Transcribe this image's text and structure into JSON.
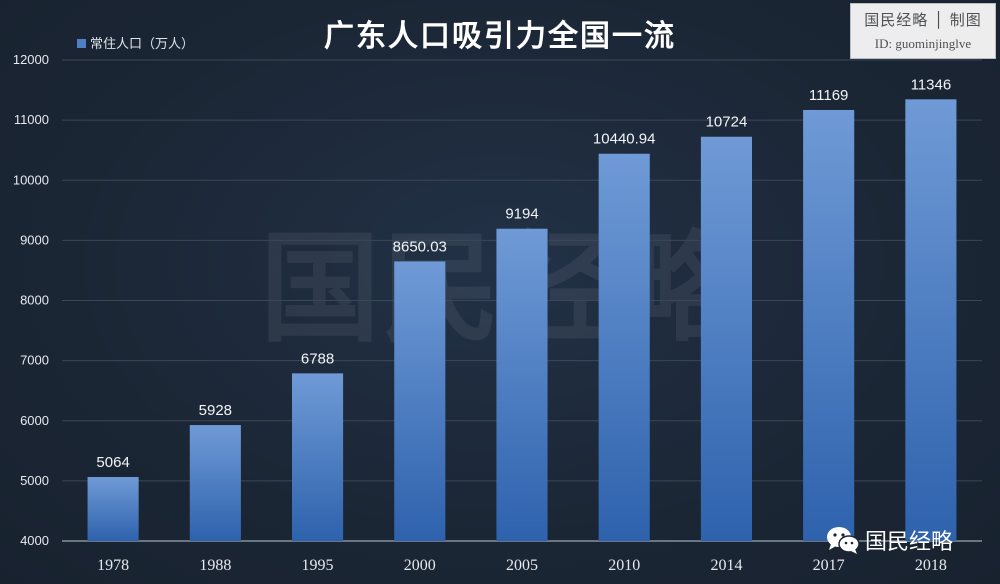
{
  "chart_data": {
    "type": "bar",
    "title": "广东人口吸引力全国一流",
    "xlabel": "",
    "ylabel": "",
    "categories": [
      "1978",
      "1988",
      "1995",
      "2000",
      "2005",
      "2010",
      "2014",
      "2017",
      "2018"
    ],
    "series": [
      {
        "name": "常住人口（万人）",
        "values": [
          5064,
          5928,
          6788,
          8650.03,
          9194,
          10440.94,
          10724,
          11169,
          11346
        ],
        "labels": [
          "5064",
          "5928",
          "6788",
          "8650.03",
          "9194",
          "10440.94",
          "10724",
          "11169",
          "11346"
        ]
      }
    ],
    "ylim": [
      4000,
      12000
    ],
    "yticks": [
      4000,
      5000,
      6000,
      7000,
      8000,
      9000,
      10000,
      11000,
      12000
    ],
    "grid": true,
    "legend_position": "top-left",
    "colors": {
      "bar_top": "#6f9ad6",
      "bar_bottom": "#2e62ad",
      "background": "#1b2635",
      "grid": "#3a4757"
    }
  },
  "watermark": {
    "text": "国民经略"
  },
  "stamp": {
    "name": "国民经略 │ 制图",
    "id": "ID:  guominjinglve"
  },
  "brand": {
    "icon": "wechat-icon",
    "name": "国民经略"
  }
}
